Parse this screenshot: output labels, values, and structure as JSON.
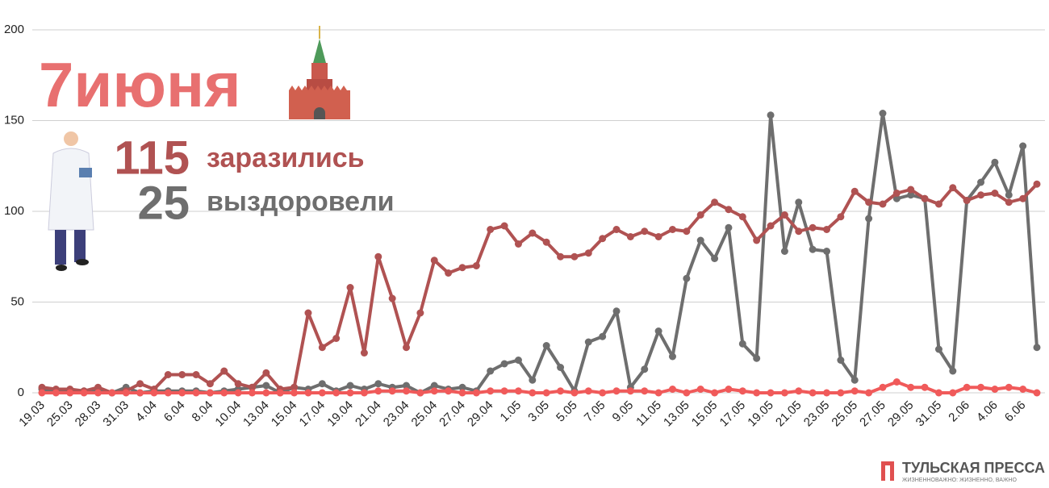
{
  "chart_data": {
    "type": "line",
    "title": "7июня",
    "categories": [
      "19.03",
      null,
      "25.03",
      null,
      "28.03",
      null,
      "31.03",
      null,
      "4.04",
      null,
      "6.04",
      null,
      "8.04",
      null,
      "10.04",
      null,
      "13.04",
      null,
      "15.04",
      null,
      "17.04",
      null,
      "19.04",
      null,
      "21.04",
      null,
      "23.04",
      null,
      "25.04",
      null,
      "27.04",
      null,
      "29.04",
      null,
      "1.05",
      null,
      "3.05",
      null,
      "5.05",
      null,
      "7.05",
      null,
      "9.05",
      null,
      "11.05",
      null,
      "13.05",
      null,
      "15.05",
      null,
      "17.05",
      null,
      "19.05",
      null,
      "21.05",
      null,
      "23.05",
      null,
      "25.05",
      null,
      "27.05",
      null,
      "29.05",
      null,
      "31.05",
      null,
      "2.06",
      null,
      "4.06",
      null,
      "6.06",
      null
    ],
    "series": [
      {
        "name": "заразились",
        "color": "#b05252",
        "values": [
          3,
          2,
          2,
          1,
          3,
          0,
          1,
          5,
          2,
          10,
          10,
          10,
          5,
          12,
          5,
          3,
          11,
          2,
          3,
          44,
          25,
          30,
          58,
          22,
          75,
          52,
          25,
          44,
          73,
          66,
          69,
          70,
          90,
          92,
          82,
          88,
          83,
          75,
          75,
          77,
          85,
          90,
          86,
          89,
          86,
          90,
          89,
          98,
          105,
          101,
          97,
          84,
          92,
          98,
          89,
          91,
          90,
          97,
          111,
          105,
          104,
          110,
          112,
          107,
          104,
          113,
          106,
          109,
          110,
          105,
          107,
          115
        ]
      },
      {
        "name": "выздоровели",
        "color": "#6e6e6e",
        "values": [
          2,
          1,
          1,
          1,
          1,
          0,
          3,
          0,
          1,
          1,
          1,
          1,
          0,
          1,
          2,
          3,
          4,
          0,
          3,
          2,
          5,
          1,
          4,
          2,
          5,
          3,
          4,
          0,
          4,
          2,
          3,
          1,
          12,
          16,
          18,
          7,
          26,
          14,
          1,
          28,
          31,
          45,
          3,
          13,
          34,
          20,
          63,
          84,
          74,
          91,
          27,
          19,
          153,
          78,
          105,
          79,
          78,
          18,
          7,
          96,
          154,
          107,
          109,
          107,
          24,
          12,
          106,
          116,
          127,
          109,
          136,
          25
        ]
      },
      {
        "color": "#f05a5a",
        "values": [
          0,
          0,
          0,
          0,
          0,
          0,
          0,
          0,
          0,
          0,
          0,
          0,
          0,
          0,
          0,
          0,
          0,
          0,
          0,
          0,
          0,
          0,
          0,
          0,
          1,
          1,
          1,
          0,
          1,
          1,
          0,
          0,
          1,
          1,
          1,
          0,
          0,
          1,
          0,
          1,
          0,
          1,
          1,
          1,
          0,
          2,
          0,
          2,
          0,
          2,
          1,
          0,
          0,
          0,
          1,
          0,
          0,
          0,
          1,
          0,
          3,
          6,
          3,
          3,
          0,
          0,
          3,
          3,
          2,
          3,
          2,
          0
        ]
      }
    ],
    "ylim": [
      0,
      200
    ],
    "yticks": [
      0,
      50,
      100,
      150,
      200
    ],
    "grid": true,
    "logo": {
      "name": "ТУЛЬСКАЯ ПРЕССА",
      "tagline": "ЖИЗНЕННОВАЖНО: ЖИЗНЕННО, ВАЖНО"
    }
  }
}
